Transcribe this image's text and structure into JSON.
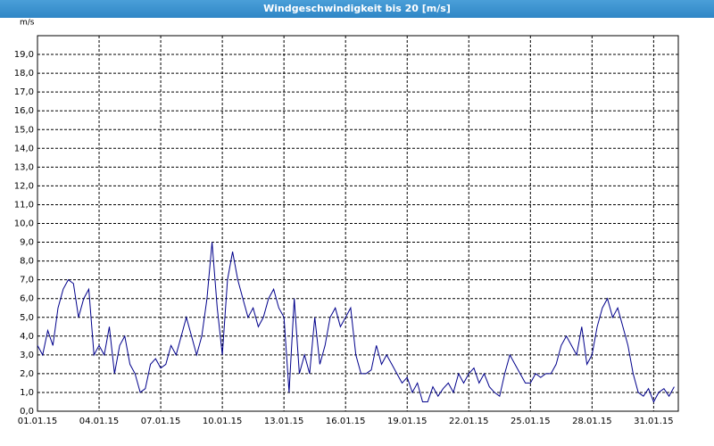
{
  "chart_data": {
    "type": "line",
    "title": "Windgeschwindigkeit bis 20 [m/s]",
    "y_label": "m/s",
    "xlim": [
      0,
      31.2
    ],
    "xticks": [
      {
        "value": 0,
        "label": "01.01.15"
      },
      {
        "value": 3,
        "label": "04.01.15"
      },
      {
        "value": 6,
        "label": "07.01.15"
      },
      {
        "value": 9,
        "label": "10.01.15"
      },
      {
        "value": 12,
        "label": "13.01.15"
      },
      {
        "value": 15,
        "label": "16.01.15"
      },
      {
        "value": 18,
        "label": "19.01.15"
      },
      {
        "value": 21,
        "label": "22.01.15"
      },
      {
        "value": 24,
        "label": "25.01.15"
      },
      {
        "value": 27,
        "label": "28.01.15"
      },
      {
        "value": 30,
        "label": "31.01.15"
      }
    ],
    "ylim": [
      0,
      20
    ],
    "yticks": [
      {
        "value": 0,
        "label": "0,0"
      },
      {
        "value": 1,
        "label": "1,0"
      },
      {
        "value": 2,
        "label": "2,0"
      },
      {
        "value": 3,
        "label": "3,0"
      },
      {
        "value": 4,
        "label": "4,0"
      },
      {
        "value": 5,
        "label": "5,0"
      },
      {
        "value": 6,
        "label": "6,0"
      },
      {
        "value": 7,
        "label": "7,0"
      },
      {
        "value": 8,
        "label": "8,0"
      },
      {
        "value": 9,
        "label": "9,0"
      },
      {
        "value": 10,
        "label": "10,0"
      },
      {
        "value": 11,
        "label": "11,0"
      },
      {
        "value": 12,
        "label": "12,0"
      },
      {
        "value": 13,
        "label": "13,0"
      },
      {
        "value": 14,
        "label": "14,0"
      },
      {
        "value": 15,
        "label": "15,0"
      },
      {
        "value": 16,
        "label": "16,0"
      },
      {
        "value": 17,
        "label": "17,0"
      },
      {
        "value": 18,
        "label": "18,0"
      },
      {
        "value": 19,
        "label": "19,0"
      }
    ],
    "grid": true,
    "series": [
      {
        "color": "#00008b",
        "x": [
          0,
          0.25,
          0.5,
          0.75,
          1,
          1.25,
          1.5,
          1.75,
          2,
          2.25,
          2.5,
          2.75,
          3,
          3.25,
          3.5,
          3.75,
          4,
          4.25,
          4.5,
          4.75,
          5,
          5.25,
          5.5,
          5.75,
          6,
          6.25,
          6.5,
          6.75,
          7,
          7.25,
          7.5,
          7.75,
          8,
          8.25,
          8.5,
          8.75,
          9,
          9.25,
          9.5,
          9.75,
          10,
          10.25,
          10.5,
          10.75,
          11,
          11.25,
          11.5,
          11.75,
          12,
          12.25,
          12.5,
          12.75,
          13,
          13.25,
          13.5,
          13.75,
          14,
          14.25,
          14.5,
          14.75,
          15,
          15.25,
          15.5,
          15.75,
          16,
          16.25,
          16.5,
          16.75,
          17,
          17.25,
          17.5,
          17.75,
          18,
          18.25,
          18.5,
          18.75,
          19,
          19.25,
          19.5,
          19.75,
          20,
          20.25,
          20.5,
          20.75,
          21,
          21.25,
          21.5,
          21.75,
          22,
          22.25,
          22.5,
          22.75,
          23,
          23.25,
          23.5,
          23.75,
          24,
          24.25,
          24.5,
          24.75,
          25,
          25.25,
          25.5,
          25.75,
          26,
          26.25,
          26.5,
          26.75,
          27,
          27.25,
          27.5,
          27.75,
          28,
          28.25,
          28.5,
          28.75,
          29,
          29.25,
          29.5,
          29.75,
          30,
          30.25,
          30.5,
          30.75,
          31
        ],
        "values": [
          3.5,
          3,
          4.3,
          3.5,
          5.5,
          6.5,
          7,
          6.8,
          5,
          6,
          6.5,
          3,
          3.5,
          3,
          4.5,
          2,
          3.5,
          4,
          2.5,
          2,
          1,
          1.2,
          2.5,
          2.8,
          2.3,
          2.5,
          3.5,
          3,
          4,
          5,
          4,
          3,
          4,
          6,
          9,
          5.5,
          3,
          7,
          8.5,
          7,
          6,
          5,
          5.5,
          4.5,
          5,
          6,
          6.5,
          5.5,
          5,
          1,
          6,
          2,
          3,
          2,
          5,
          2.5,
          3.5,
          5,
          5.5,
          4.5,
          5,
          5.5,
          3,
          2,
          2,
          2.2,
          3.5,
          2.5,
          3,
          2.5,
          2,
          1.5,
          1.8,
          1,
          1.5,
          0.5,
          0.5,
          1.3,
          0.8,
          1.2,
          1.5,
          1,
          2,
          1.5,
          2,
          2.3,
          1.5,
          2,
          1.3,
          1,
          0.8,
          2,
          3,
          2.5,
          2,
          1.5,
          1.5,
          2,
          1.8,
          2,
          2,
          2.5,
          3.5,
          4,
          3.5,
          3,
          4.5,
          2.5,
          3,
          4.5,
          5.5,
          6,
          5,
          5.5,
          4.5,
          3.5,
          2,
          1,
          0.8,
          1.2,
          0.5,
          1,
          1.2,
          0.8,
          1.3
        ]
      }
    ]
  }
}
